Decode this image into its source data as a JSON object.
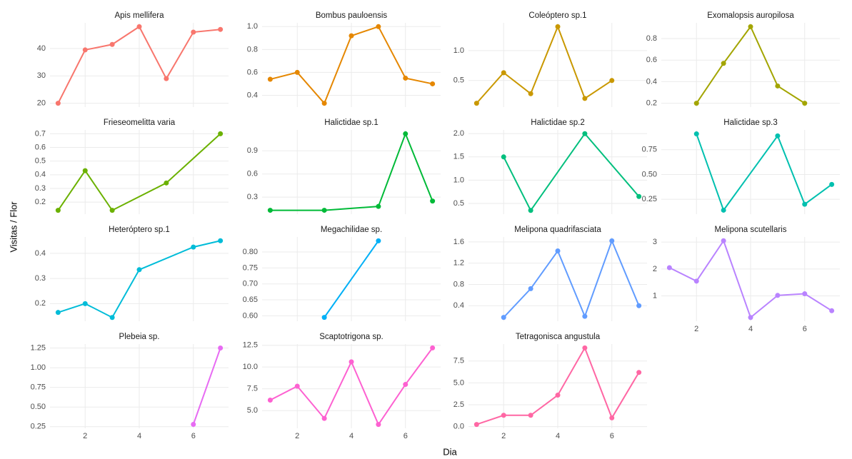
{
  "chart_data": {
    "type": "line",
    "xlabel": "Dia",
    "ylabel": "Visitas / Flor",
    "xlim": [
      0.7,
      7.3
    ],
    "xticks": [
      2,
      4,
      6
    ],
    "grid": true,
    "series": [
      {
        "name": "Apis mellifera",
        "color": "#F8766D",
        "x": [
          1,
          2,
          3,
          4,
          5,
          6,
          7
        ],
        "values": [
          20,
          39.5,
          41.5,
          48,
          29,
          46,
          47
        ],
        "ylim": [
          18.6,
          49.4
        ],
        "yticks": [
          20,
          30,
          40
        ]
      },
      {
        "name": "Bombus pauloensis",
        "color": "#E58700",
        "x": [
          1,
          2,
          3,
          4,
          5,
          6,
          7
        ],
        "values": [
          0.54,
          0.6,
          0.33,
          0.92,
          1.0,
          0.55,
          0.5
        ],
        "ylim": [
          0.297,
          1.033
        ],
        "yticks": [
          0.4,
          0.6,
          0.8,
          {
            "value": 1.0,
            "label": "1.0"
          }
        ]
      },
      {
        "name": "Coleóptero sp.1",
        "color": "#C99800",
        "x": [
          1,
          2,
          3,
          4,
          5,
          6
        ],
        "values": [
          0.12,
          0.63,
          0.28,
          1.4,
          0.2,
          0.5
        ],
        "ylim": [
          0.056,
          1.464
        ],
        "yticks": [
          0.5,
          {
            "value": 1.0,
            "label": "1.0"
          }
        ]
      },
      {
        "name": "Exomalopsis auropilosa",
        "color": "#A3A500",
        "x": [
          2,
          3,
          4,
          5,
          6
        ],
        "values": [
          0.2,
          0.57,
          0.91,
          0.36,
          0.2
        ],
        "ylim": [
          0.1645,
          0.9455
        ],
        "yticks": [
          0.2,
          0.4,
          0.6,
          0.8
        ]
      },
      {
        "name": "Frieseomelitta varia",
        "color": "#6BB100",
        "x": [
          1,
          2,
          3,
          5,
          7
        ],
        "values": [
          0.14,
          0.43,
          0.14,
          0.34,
          0.7
        ],
        "ylim": [
          0.112,
          0.728
        ],
        "yticks": [
          0.2,
          0.3,
          0.4,
          0.5,
          0.6,
          0.7
        ]
      },
      {
        "name": "Halictidae sp.1",
        "color": "#00BA38",
        "x": [
          1,
          3,
          5,
          6,
          7
        ],
        "values": [
          0.13,
          0.13,
          0.18,
          1.12,
          0.25
        ],
        "ylim": [
          0.08,
          1.17
        ],
        "yticks": [
          0.3,
          0.6,
          0.9
        ]
      },
      {
        "name": "Halictidae sp.2",
        "color": "#00BF7D",
        "x": [
          2,
          3,
          5,
          7
        ],
        "values": [
          1.5,
          0.35,
          2.0,
          0.65
        ],
        "ylim": [
          0.27,
          2.08
        ],
        "yticks": [
          0.5,
          {
            "value": 1.0,
            "label": "1.0"
          },
          1.5,
          {
            "value": 2.0,
            "label": "2.0"
          }
        ]
      },
      {
        "name": "Halictidae sp.3",
        "color": "#00C0AF",
        "x": [
          2,
          3,
          5,
          6,
          7
        ],
        "values": [
          0.91,
          0.14,
          0.89,
          0.2,
          0.4
        ],
        "ylim": [
          0.1,
          0.95
        ],
        "yticks": [
          0.25,
          {
            "value": 0.5,
            "label": "0.50"
          },
          0.75
        ]
      },
      {
        "name": "Heteróptero sp.1",
        "color": "#00BCD8",
        "x": [
          1,
          2,
          3,
          4,
          6,
          7
        ],
        "values": [
          0.165,
          0.2,
          0.145,
          0.335,
          0.425,
          0.45
        ],
        "ylim": [
          0.13,
          0.465
        ],
        "yticks": [
          0.2,
          0.3,
          0.4
        ]
      },
      {
        "name": "Megachilidae sp.",
        "color": "#00B0F6",
        "x": [
          3,
          5
        ],
        "values": [
          0.595,
          0.835
        ],
        "ylim": [
          0.583,
          0.847
        ],
        "yticks": [
          {
            "value": 0.6,
            "label": "0.60"
          },
          0.65,
          {
            "value": 0.7,
            "label": "0.70"
          },
          0.75,
          {
            "value": 0.8,
            "label": "0.80"
          }
        ]
      },
      {
        "name": "Melipona quadrifasciata",
        "color": "#619CFF",
        "x": [
          2,
          3,
          4,
          5,
          6,
          7
        ],
        "values": [
          0.18,
          0.72,
          1.43,
          0.2,
          1.62,
          0.4
        ],
        "ylim": [
          0.108,
          1.692
        ],
        "yticks": [
          0.4,
          0.8,
          1.2,
          1.6
        ]
      },
      {
        "name": "Melipona scutellaris",
        "color": "#B983FF",
        "x": [
          1,
          2,
          3,
          4,
          5,
          6,
          7
        ],
        "values": [
          2.05,
          1.55,
          3.05,
          0.2,
          1.02,
          1.08,
          0.45
        ],
        "ylim": [
          0.06,
          3.19
        ],
        "yticks": [
          1,
          2,
          3
        ]
      },
      {
        "name": "Plebeia sp.",
        "color": "#E76BF3",
        "x": [
          6,
          7
        ],
        "values": [
          0.28,
          1.25
        ],
        "ylim": [
          0.23,
          1.3
        ],
        "yticks": [
          0.25,
          {
            "value": 0.5,
            "label": "0.50"
          },
          0.75,
          {
            "value": 1.0,
            "label": "1.00"
          },
          1.25
        ]
      },
      {
        "name": "Scaptotrigona sp.",
        "color": "#FD61D1",
        "x": [
          1,
          2,
          3,
          4,
          5,
          6,
          7
        ],
        "values": [
          6.2,
          7.8,
          4.1,
          10.6,
          3.4,
          8.0,
          12.2
        ],
        "ylim": [
          2.96,
          12.64
        ],
        "yticks": [
          {
            "value": 5,
            "label": "5.0"
          },
          7.5,
          {
            "value": 10,
            "label": "10.0"
          },
          12.5
        ]
      },
      {
        "name": "Tetragonisca angustula",
        "color": "#FF67A4",
        "x": [
          1,
          2,
          3,
          4,
          5,
          6,
          7
        ],
        "values": [
          0.25,
          1.3,
          1.3,
          3.6,
          9.0,
          1.0,
          6.2
        ],
        "ylim": [
          -0.19,
          9.44
        ],
        "yticks": [
          {
            "value": 0,
            "label": "0.0"
          },
          2.5,
          {
            "value": 5,
            "label": "5.0"
          },
          7.5
        ]
      }
    ]
  }
}
